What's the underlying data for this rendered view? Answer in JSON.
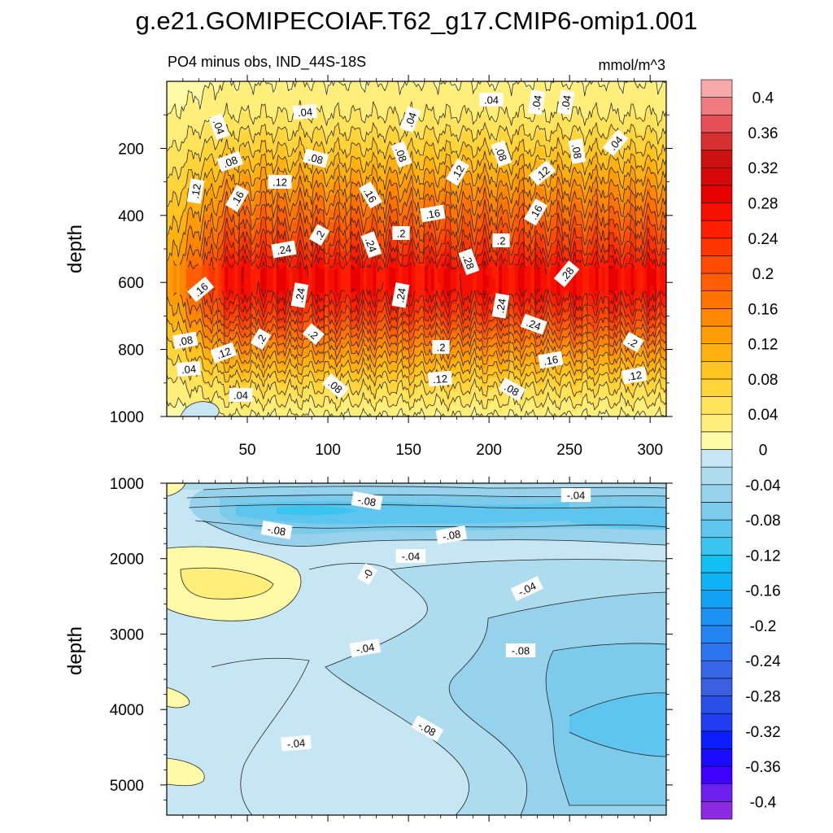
{
  "chart_data": [
    {
      "type": "heatmap",
      "title": "g.e21.GOMIPECOIAF.T62_g17.CMIP6-omip1.001",
      "subtitle_left": "PO4 minus obs, IND_44S-18S",
      "subtitle_right": "mmol/m^3",
      "panel": "upper",
      "xlabel": "",
      "ylabel": "depth",
      "xlim": [
        0,
        310
      ],
      "ylim": [
        1000,
        0
      ],
      "x_ticks": [
        "50",
        "100",
        "150",
        "200",
        "250",
        "300"
      ],
      "y_ticks": [
        "200",
        "400",
        "600",
        "800",
        "1000"
      ],
      "profile_depths": [
        0,
        100,
        200,
        300,
        400,
        500,
        560,
        620,
        700,
        800,
        900,
        1000
      ],
      "profile_values": [
        0.02,
        0.04,
        0.08,
        0.13,
        0.18,
        0.23,
        0.27,
        0.27,
        0.22,
        0.14,
        0.07,
        0.02
      ],
      "contour_labels": [
        ".04",
        ".04",
        ".04",
        ".04",
        ".04",
        ".04",
        ".04",
        ".08",
        ".08",
        ".08",
        ".08",
        ".08",
        ".12",
        ".12",
        ".12",
        ".12",
        ".16",
        ".16",
        ".16",
        ".16",
        ".2",
        ".2",
        ".2",
        ".24",
        ".24",
        ".28",
        ".28",
        ".16",
        ".24",
        ".24",
        ".24",
        ".24",
        ".08",
        ".2",
        ".2",
        ".2",
        ".2",
        ".12",
        ".16",
        ".04",
        ".12",
        ".12",
        ".04",
        ".08",
        ".08"
      ]
    },
    {
      "type": "heatmap",
      "panel": "lower",
      "xlabel": "",
      "ylabel": "depth",
      "xlim": [
        0,
        310
      ],
      "ylim": [
        5400,
        1000
      ],
      "y_ticks": [
        "1000",
        "2000",
        "3000",
        "4000",
        "5000"
      ],
      "contour_labels": [
        "-.08",
        "-.04",
        "-.08",
        "-.08",
        "-.04",
        "-0",
        "-.04",
        "-.04",
        "-.08",
        "-.08",
        "-.04"
      ]
    },
    {
      "type": "colorbar",
      "levels": [
        -0.42,
        -0.4,
        -0.38,
        -0.36,
        -0.34,
        -0.32,
        -0.3,
        -0.28,
        -0.26,
        -0.24,
        -0.22,
        -0.2,
        -0.18,
        -0.16,
        -0.14,
        -0.12,
        -0.1,
        -0.08,
        -0.06,
        -0.04,
        -0.02,
        0,
        0.02,
        0.04,
        0.06,
        0.08,
        0.1,
        0.12,
        0.14,
        0.16,
        0.18,
        0.2,
        0.22,
        0.24,
        0.26,
        0.28,
        0.3,
        0.32,
        0.34,
        0.36,
        0.38,
        0.4,
        0.42
      ],
      "colors": [
        "#8a2be2",
        "#6d1ff0",
        "#3f00ff",
        "#1a0cff",
        "#0a1eff",
        "#1f3cf0",
        "#2850e8",
        "#3a5fe0",
        "#3566e8",
        "#2a74ef",
        "#2384f2",
        "#1c92f4",
        "#12a2f5",
        "#0db3f5",
        "#13bff2",
        "#3ac4f0",
        "#5ec6ee",
        "#7ccbeb",
        "#97d2ec",
        "#aedcef",
        "#c6e6f3",
        "#fffaa8",
        "#ffef7a",
        "#ffe35a",
        "#ffd43a",
        "#ffc41f",
        "#ffb10f",
        "#ff9c06",
        "#ff8703",
        "#ff7302",
        "#ff5e02",
        "#ff4a01",
        "#ff3500",
        "#ff1f00",
        "#f70f00",
        "#e80000",
        "#d80808",
        "#cc1111",
        "#d83030",
        "#e64f56",
        "#ef7b7e",
        "#f7a8ab"
      ],
      "tick_labels": [
        "0.4",
        "0.36",
        "0.32",
        "0.28",
        "0.24",
        "0.2",
        "0.16",
        "0.12",
        "0.08",
        "0.04",
        "0",
        "-0.04",
        "-0.08",
        "-0.12",
        "-0.16",
        "-0.2",
        "-0.24",
        "-0.28",
        "-0.32",
        "-0.36",
        "-0.4"
      ]
    }
  ]
}
